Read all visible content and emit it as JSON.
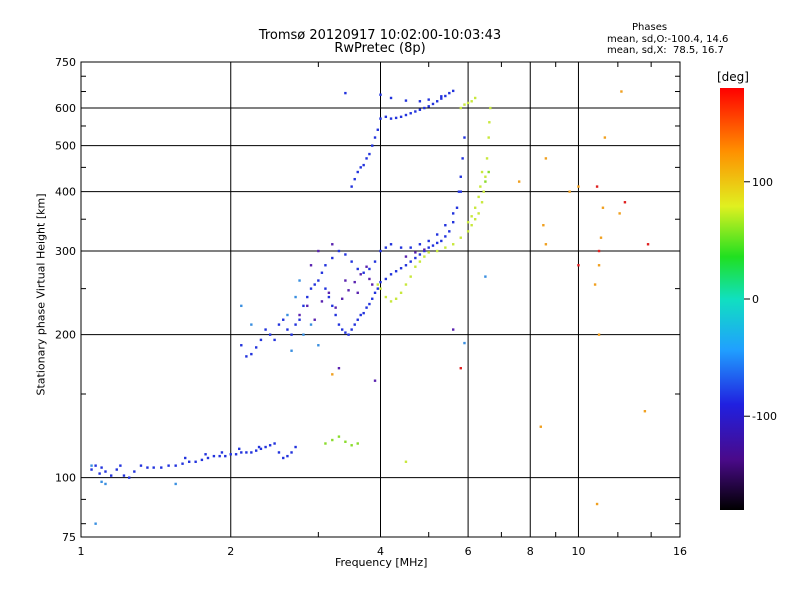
{
  "chart_data": {
    "type": "scatter",
    "title": "Tromsø 20120917 10:02:00-10:03:43",
    "subtitle": "RwPretec (8p)",
    "xlabel": "Frequency [MHz]",
    "ylabel": "Stationary phase Virtual Height [km]",
    "x_scale": "log",
    "y_scale": "log",
    "xlim": [
      1,
      16
    ],
    "ylim": [
      75,
      750
    ],
    "x_ticks": [
      1,
      2,
      4,
      6,
      8,
      10,
      16
    ],
    "y_ticks": [
      75,
      100,
      200,
      300,
      400,
      500,
      600,
      750
    ],
    "grid": true,
    "stats": {
      "title": "Phases",
      "o_line": "mean, sd,O:-100.4, 14.6",
      "x_line": "mean, sd,X:  78.5, 16.7"
    },
    "colorbar": {
      "label": "[deg]",
      "ticks": [
        100,
        0,
        -100
      ],
      "range": [
        -180,
        180
      ]
    },
    "point_colors": {
      "o_mode": "#2233dd",
      "o_mode_alt": "#3a8fe0",
      "x_mode": "#c8e83c",
      "x_mode_alt": "#8adc2c",
      "purple": "#5a23b0",
      "orange": "#f0a020",
      "red": "#e02020"
    },
    "series": [
      {
        "mode": "o",
        "color": "o_mode",
        "points": [
          [
            1.05,
            104
          ],
          [
            1.07,
            106
          ],
          [
            1.09,
            102
          ],
          [
            1.1,
            105
          ],
          [
            1.12,
            103
          ],
          [
            1.15,
            101
          ],
          [
            1.18,
            104
          ],
          [
            1.2,
            106
          ],
          [
            1.22,
            101
          ],
          [
            1.25,
            100
          ],
          [
            1.28,
            103
          ],
          [
            1.32,
            106
          ],
          [
            1.36,
            105
          ],
          [
            1.4,
            105
          ],
          [
            1.45,
            105
          ],
          [
            1.5,
            106
          ],
          [
            1.55,
            106
          ],
          [
            1.6,
            107
          ],
          [
            1.65,
            108
          ],
          [
            1.7,
            108
          ],
          [
            1.75,
            109
          ],
          [
            1.8,
            110
          ],
          [
            1.85,
            111
          ],
          [
            1.9,
            111
          ],
          [
            1.95,
            111
          ],
          [
            2.0,
            112
          ],
          [
            2.05,
            112
          ],
          [
            2.1,
            113
          ],
          [
            2.15,
            113
          ],
          [
            2.2,
            113
          ],
          [
            2.25,
            114
          ],
          [
            2.3,
            115
          ],
          [
            2.35,
            116
          ],
          [
            2.4,
            117
          ],
          [
            2.45,
            118
          ],
          [
            2.5,
            113
          ],
          [
            2.55,
            110
          ],
          [
            2.6,
            111
          ],
          [
            2.65,
            113
          ],
          [
            2.7,
            116
          ],
          [
            1.62,
            110
          ],
          [
            1.78,
            112
          ],
          [
            1.92,
            113
          ],
          [
            2.08,
            115
          ],
          [
            2.28,
            116
          ],
          [
            2.1,
            190
          ],
          [
            2.15,
            180
          ],
          [
            2.2,
            182
          ],
          [
            2.25,
            188
          ],
          [
            2.3,
            195
          ],
          [
            2.35,
            205
          ],
          [
            2.4,
            200
          ],
          [
            2.45,
            195
          ],
          [
            2.5,
            210
          ],
          [
            2.55,
            215
          ],
          [
            2.6,
            205
          ],
          [
            2.65,
            200
          ],
          [
            2.7,
            210
          ],
          [
            2.75,
            215
          ],
          [
            2.8,
            230
          ],
          [
            2.85,
            240
          ],
          [
            2.9,
            250
          ],
          [
            2.95,
            255
          ],
          [
            3.0,
            260
          ],
          [
            3.05,
            270
          ],
          [
            3.1,
            250
          ],
          [
            3.15,
            240
          ],
          [
            3.2,
            230
          ],
          [
            3.25,
            220
          ],
          [
            3.3,
            210
          ],
          [
            3.35,
            205
          ],
          [
            3.4,
            202
          ],
          [
            3.45,
            200
          ],
          [
            3.5,
            205
          ],
          [
            3.55,
            210
          ],
          [
            3.6,
            215
          ],
          [
            3.65,
            220
          ],
          [
            3.7,
            222
          ],
          [
            3.75,
            228
          ],
          [
            3.8,
            232
          ],
          [
            3.85,
            238
          ],
          [
            3.9,
            245
          ],
          [
            3.95,
            250
          ],
          [
            4.0,
            258
          ],
          [
            4.1,
            262
          ],
          [
            4.2,
            268
          ],
          [
            4.3,
            272
          ],
          [
            4.4,
            276
          ],
          [
            4.5,
            280
          ],
          [
            4.6,
            285
          ],
          [
            4.7,
            290
          ],
          [
            4.8,
            295
          ],
          [
            4.9,
            300
          ],
          [
            5.0,
            305
          ],
          [
            5.1,
            308
          ],
          [
            5.2,
            312
          ],
          [
            5.3,
            315
          ],
          [
            5.4,
            322
          ],
          [
            5.5,
            330
          ],
          [
            5.6,
            345
          ],
          [
            5.7,
            370
          ],
          [
            5.75,
            400
          ],
          [
            5.8,
            430
          ],
          [
            5.85,
            470
          ],
          [
            5.9,
            520
          ],
          [
            3.1,
            280
          ],
          [
            3.2,
            290
          ],
          [
            3.3,
            300
          ],
          [
            3.4,
            295
          ],
          [
            3.5,
            285
          ],
          [
            3.6,
            275
          ],
          [
            3.7,
            270
          ],
          [
            3.8,
            275
          ],
          [
            3.9,
            285
          ],
          [
            4.0,
            300
          ],
          [
            4.1,
            305
          ],
          [
            4.2,
            310
          ],
          [
            4.4,
            305
          ],
          [
            4.6,
            305
          ],
          [
            4.8,
            310
          ],
          [
            5.0,
            315
          ],
          [
            5.2,
            325
          ],
          [
            5.4,
            340
          ],
          [
            5.6,
            360
          ],
          [
            5.8,
            400
          ],
          [
            3.5,
            410
          ],
          [
            3.55,
            425
          ],
          [
            3.6,
            440
          ],
          [
            3.65,
            450
          ],
          [
            3.7,
            455
          ],
          [
            3.75,
            470
          ],
          [
            3.8,
            480
          ],
          [
            3.85,
            500
          ],
          [
            3.9,
            520
          ],
          [
            3.95,
            540
          ],
          [
            4.0,
            570
          ],
          [
            4.1,
            575
          ],
          [
            4.2,
            570
          ],
          [
            4.3,
            572
          ],
          [
            4.4,
            575
          ],
          [
            4.5,
            580
          ],
          [
            4.6,
            585
          ],
          [
            4.7,
            590
          ],
          [
            4.8,
            595
          ],
          [
            4.9,
            600
          ],
          [
            5.0,
            605
          ],
          [
            5.1,
            612
          ],
          [
            5.2,
            620
          ],
          [
            5.3,
            628
          ],
          [
            5.4,
            636
          ],
          [
            5.5,
            645
          ],
          [
            5.6,
            652
          ],
          [
            4.0,
            640
          ],
          [
            4.2,
            630
          ],
          [
            4.5,
            622
          ],
          [
            4.8,
            620
          ],
          [
            5.0,
            625
          ],
          [
            5.3,
            635
          ],
          [
            3.4,
            645
          ]
        ]
      },
      {
        "mode": "o",
        "color": "o_mode_alt",
        "points": [
          [
            1.1,
            98
          ],
          [
            1.12,
            97
          ],
          [
            1.05,
            106
          ],
          [
            2.1,
            230
          ],
          [
            2.2,
            210
          ],
          [
            2.6,
            220
          ],
          [
            2.7,
            240
          ],
          [
            2.75,
            260
          ],
          [
            2.8,
            200
          ],
          [
            2.9,
            210
          ],
          [
            3.0,
            190
          ],
          [
            2.65,
            185
          ],
          [
            1.07,
            80
          ],
          [
            1.55,
            97
          ],
          [
            5.9,
            192
          ],
          [
            6.5,
            265
          ]
        ]
      },
      {
        "mode": "o",
        "color": "purple",
        "points": [
          [
            2.75,
            220
          ],
          [
            2.85,
            230
          ],
          [
            2.95,
            215
          ],
          [
            3.05,
            235
          ],
          [
            3.15,
            245
          ],
          [
            3.25,
            228
          ],
          [
            3.35,
            238
          ],
          [
            3.45,
            248
          ],
          [
            3.55,
            258
          ],
          [
            3.65,
            268
          ],
          [
            3.75,
            278
          ],
          [
            3.85,
            255
          ],
          [
            2.9,
            280
          ],
          [
            3.0,
            300
          ],
          [
            3.2,
            310
          ],
          [
            3.4,
            260
          ],
          [
            3.6,
            245
          ],
          [
            3.8,
            262
          ],
          [
            4.5,
            292
          ],
          [
            4.7,
            298
          ],
          [
            4.9,
            302
          ],
          [
            3.3,
            170
          ],
          [
            3.9,
            160
          ],
          [
            5.6,
            205
          ]
        ]
      },
      {
        "mode": "x",
        "color": "x_mode",
        "points": [
          [
            3.95,
            255
          ],
          [
            4.0,
            250
          ],
          [
            4.1,
            240
          ],
          [
            4.2,
            235
          ],
          [
            4.3,
            238
          ],
          [
            4.4,
            245
          ],
          [
            4.5,
            255
          ],
          [
            4.6,
            265
          ],
          [
            4.7,
            278
          ],
          [
            4.8,
            285
          ],
          [
            4.9,
            292
          ],
          [
            5.0,
            298
          ],
          [
            5.2,
            300
          ],
          [
            5.4,
            305
          ],
          [
            5.6,
            310
          ],
          [
            5.8,
            320
          ],
          [
            6.0,
            330
          ],
          [
            6.1,
            340
          ],
          [
            6.2,
            350
          ],
          [
            6.3,
            360
          ],
          [
            6.4,
            380
          ],
          [
            6.45,
            400
          ],
          [
            6.5,
            430
          ],
          [
            6.55,
            470
          ],
          [
            6.6,
            520
          ],
          [
            6.62,
            560
          ],
          [
            6.65,
            600
          ],
          [
            6.0,
            345
          ],
          [
            6.1,
            355
          ],
          [
            6.2,
            370
          ],
          [
            6.3,
            390
          ],
          [
            6.35,
            410
          ],
          [
            6.4,
            440
          ],
          [
            5.8,
            600
          ],
          [
            5.9,
            610
          ],
          [
            6.0,
            615
          ],
          [
            6.1,
            620
          ],
          [
            6.2,
            630
          ],
          [
            4.5,
            108
          ]
        ]
      },
      {
        "mode": "x",
        "color": "x_mode_alt",
        "points": [
          [
            3.1,
            118
          ],
          [
            3.2,
            120
          ],
          [
            3.3,
            122
          ],
          [
            3.4,
            119
          ],
          [
            3.5,
            117
          ],
          [
            3.6,
            118
          ],
          [
            6.5,
            420
          ],
          [
            6.6,
            440
          ]
        ]
      },
      {
        "mode": "noise",
        "color": "orange",
        "points": [
          [
            8.6,
            470
          ],
          [
            8.5,
            340
          ],
          [
            8.6,
            310
          ],
          [
            9.6,
            400
          ],
          [
            10.0,
            410
          ],
          [
            11.2,
            370
          ],
          [
            11.1,
            320
          ],
          [
            11.0,
            280
          ],
          [
            10.8,
            255
          ],
          [
            11.0,
            200
          ],
          [
            12.2,
            650
          ],
          [
            7.6,
            420
          ],
          [
            8.4,
            128
          ],
          [
            10.9,
            88
          ],
          [
            3.2,
            165
          ],
          [
            13.6,
            138
          ],
          [
            11.3,
            520
          ],
          [
            12.1,
            360
          ]
        ]
      },
      {
        "mode": "noise",
        "color": "red",
        "points": [
          [
            10.0,
            280
          ],
          [
            11.0,
            300
          ],
          [
            12.4,
            380
          ],
          [
            13.8,
            310
          ],
          [
            10.9,
            410
          ],
          [
            5.8,
            170
          ]
        ]
      }
    ]
  }
}
